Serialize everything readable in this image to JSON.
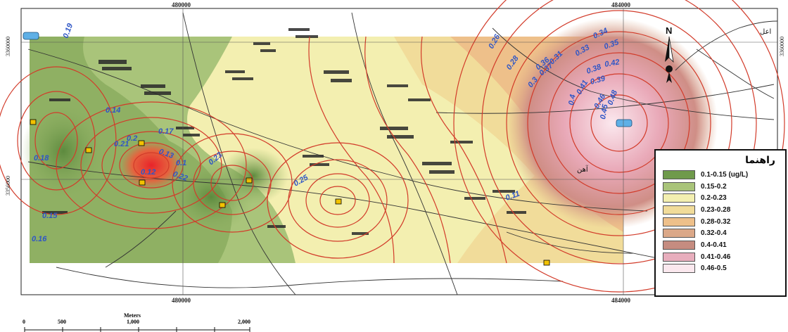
{
  "coords": {
    "top_left": "480000",
    "top_right": "484000",
    "bottom_left": "480000",
    "bottom_right": "484000",
    "left_top": "3360000",
    "left_bottom": "3356000",
    "right_top": "3360000",
    "right_bottom": "3356000"
  },
  "north_arrow": {
    "label": "N"
  },
  "legend": {
    "title": "راهنما",
    "items": [
      {
        "label": "0.1-0.15 (ug/L)",
        "color": "#6f9a4b"
      },
      {
        "label": "0.15-0.2",
        "color": "#a9c47a"
      },
      {
        "label": "0.2-0.23",
        "color": "#f3efb0"
      },
      {
        "label": "0.23-0.28",
        "color": "#f1dc9a"
      },
      {
        "label": "0.28-0.32",
        "color": "#eec08a"
      },
      {
        "label": "0.32-0.4",
        "color": "#dba888"
      },
      {
        "label": "0.4-0.41",
        "color": "#c58c80"
      },
      {
        "label": "0.41-0.46",
        "color": "#e8aebd"
      },
      {
        "label": "0.46-0.5",
        "color": "#fbe8ee"
      }
    ]
  },
  "contour_labels": [
    "0.19",
    "0.2",
    "0.21",
    "0.22",
    "0.23",
    "0.25",
    "0.26",
    "0.28",
    "0.3",
    "0.31",
    "0.33",
    "0.34",
    "0.35",
    "0.36",
    "0.37",
    "0.38",
    "0.39",
    "0.4",
    "0.41",
    "0.42",
    "0.45",
    "0.46",
    "0.48",
    "0.12",
    "0.13",
    "0.14",
    "0.15",
    "0.16",
    "0.17",
    "0.18",
    "0.1",
    "0.11"
  ],
  "scale_bar": {
    "unit": "Meters",
    "ticks": [
      "0",
      "500",
      "1,000",
      "2,000"
    ]
  },
  "place_labels": [
    "اعل",
    "آهن"
  ]
}
